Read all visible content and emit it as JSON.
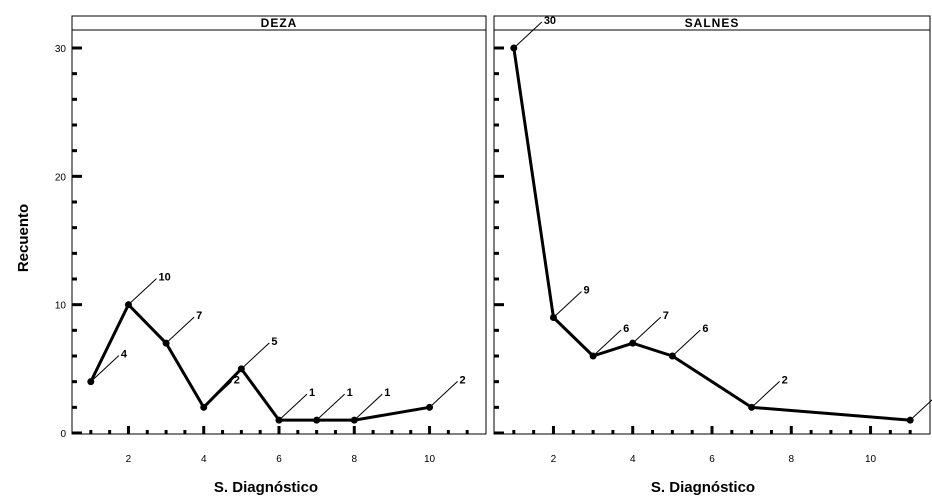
{
  "chart_data": {
    "type": "line",
    "ylabel": "Recuento",
    "xlabel": "S. Diagnóstico",
    "ylim": [
      0,
      30
    ],
    "yticks": [
      0,
      10,
      20,
      30
    ],
    "xticks": [
      2,
      4,
      6,
      8,
      10
    ],
    "line_color": "#000000",
    "panels": [
      {
        "title": "DEZA",
        "xlim": [
          0.5,
          11.5
        ],
        "x": [
          1,
          2,
          3,
          4,
          5,
          6,
          7,
          8,
          10
        ],
        "y": [
          4,
          10,
          7,
          2,
          5,
          1,
          1,
          1,
          2
        ],
        "labels": [
          "4",
          "10",
          "7",
          "2",
          "5",
          "1",
          "1",
          "1",
          "2"
        ]
      },
      {
        "title": "SALNES",
        "xlim": [
          0.5,
          11.5
        ],
        "x": [
          1,
          2,
          3,
          4,
          5,
          7,
          11
        ],
        "y": [
          30,
          9,
          6,
          7,
          6,
          2,
          1
        ],
        "labels": [
          "30",
          "9",
          "6",
          "7",
          "6",
          "2",
          ""
        ]
      }
    ]
  }
}
